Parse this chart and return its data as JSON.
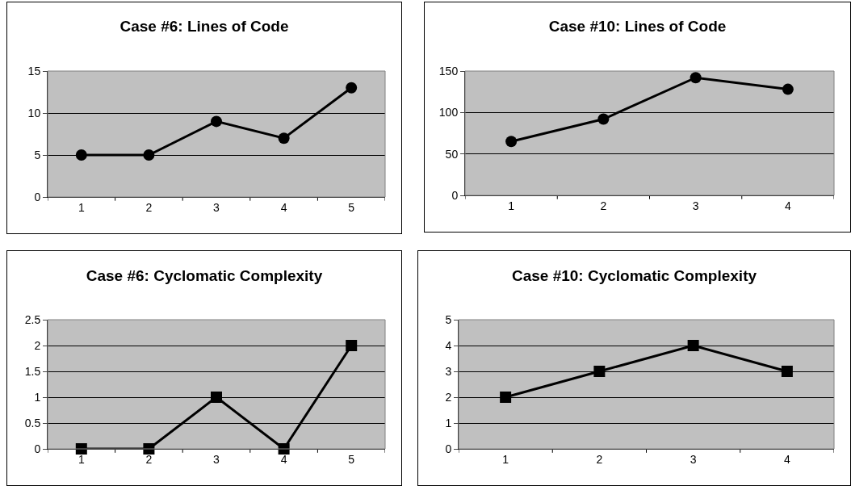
{
  "chart_data": [
    {
      "type": "line",
      "title": "Case #6: Lines of Code",
      "categories": [
        "1",
        "2",
        "3",
        "4",
        "5"
      ],
      "series": [
        {
          "color": "#000000",
          "values": [
            5,
            5,
            9,
            7,
            13
          ]
        }
      ],
      "ylim": [
        0,
        15
      ],
      "yticks": [
        0,
        5,
        10,
        15
      ],
      "grid": "y",
      "marker": "circle",
      "line_style": "solid"
    },
    {
      "type": "line",
      "title": "Case #10: Lines of Code",
      "categories": [
        "1",
        "2",
        "3",
        "4"
      ],
      "series": [
        {
          "color": "#000000",
          "values": [
            65,
            92,
            142,
            128
          ]
        }
      ],
      "ylim": [
        0,
        150
      ],
      "yticks": [
        0,
        50,
        100,
        150
      ],
      "grid": "y",
      "marker": "circle",
      "line_style": "solid"
    },
    {
      "type": "line",
      "title": "Case #6: Cyclomatic Complexity",
      "categories": [
        "1",
        "2",
        "3",
        "4",
        "5"
      ],
      "series": [
        {
          "color": "#000000",
          "values": [
            0,
            0,
            1,
            0,
            2
          ]
        }
      ],
      "ylim": [
        0,
        2.5
      ],
      "yticks": [
        0,
        0.5,
        1,
        1.5,
        2,
        2.5
      ],
      "grid": "y",
      "marker": "square",
      "line_style": "solid"
    },
    {
      "type": "line",
      "title": "Case #10: Cyclomatic Complexity",
      "categories": [
        "1",
        "2",
        "3",
        "4"
      ],
      "series": [
        {
          "color": "#000000",
          "values": [
            2,
            3,
            4,
            3
          ]
        }
      ],
      "ylim": [
        0,
        5
      ],
      "yticks": [
        0,
        1,
        2,
        3,
        4,
        5
      ],
      "grid": "y",
      "marker": "square",
      "line_style": "solid"
    }
  ]
}
